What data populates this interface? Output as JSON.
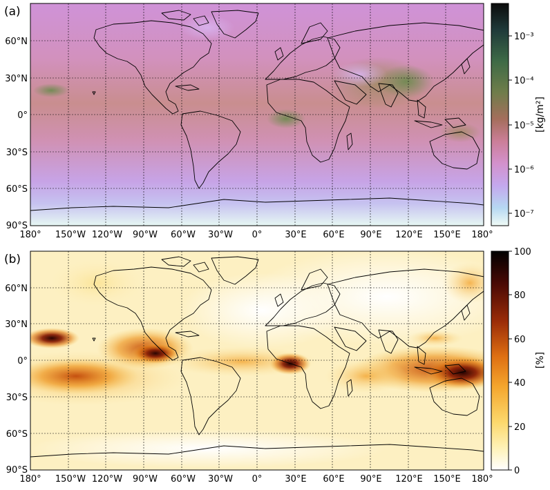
{
  "panels": [
    {
      "id": "a",
      "label": "(a)",
      "colorbar": {
        "unit_label": "[kg/m²]",
        "scale": "log",
        "ticks": [
          {
            "label": "10⁻³",
            "value": 0.001
          },
          {
            "label": "10⁻⁴",
            "value": 0.0001
          },
          {
            "label": "10⁻⁵",
            "value": 1e-05
          },
          {
            "label": "10⁻⁶",
            "value": 1e-06
          },
          {
            "label": "10⁻⁷",
            "value": 1e-07
          }
        ],
        "colors_top_to_bottom": [
          "#0b0b0b",
          "#2a4c3f",
          "#4d7a4a",
          "#8a7a4a",
          "#b8706a",
          "#d088b0",
          "#c9a0e6",
          "#b8c8f0",
          "#e8f8f4"
        ]
      }
    },
    {
      "id": "b",
      "label": "(b)",
      "colorbar": {
        "unit_label": "[%]",
        "scale": "linear",
        "range": [
          0,
          100
        ],
        "ticks": [
          {
            "label": "100",
            "value": 100
          },
          {
            "label": "80",
            "value": 80
          },
          {
            "label": "60",
            "value": 60
          },
          {
            "label": "40",
            "value": 40
          },
          {
            "label": "20",
            "value": 20
          },
          {
            "label": "0",
            "value": 0
          }
        ],
        "colors_top_to_bottom": [
          "#000000",
          "#5a0b06",
          "#a4330a",
          "#e07a14",
          "#f6b33a",
          "#fde88c",
          "#ffffff"
        ]
      }
    }
  ],
  "lat_labels": [
    "60°N",
    "30°N",
    "0°",
    "30°S",
    "60°S",
    "90°S"
  ],
  "lon_labels": [
    "180°",
    "150°W",
    "120°W",
    "90°W",
    "60°W",
    "30°W",
    "0°",
    "30°E",
    "60°E",
    "90°E",
    "120°E",
    "150°E",
    "180°"
  ]
}
